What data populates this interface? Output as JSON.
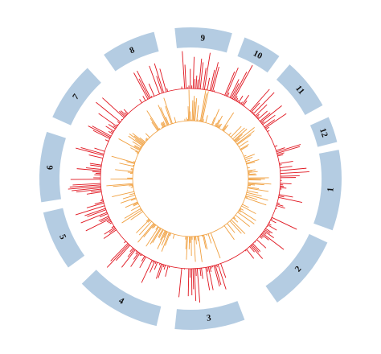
{
  "diagram": {
    "segments": [
      {
        "label": "1",
        "start_deg": 79,
        "end_deg": 110
      },
      {
        "label": "2",
        "start_deg": 115,
        "end_deg": 145
      },
      {
        "label": "3",
        "start_deg": 159,
        "end_deg": 186
      },
      {
        "label": "4",
        "start_deg": 193,
        "end_deg": 226
      },
      {
        "label": "5",
        "start_deg": 234,
        "end_deg": 257
      },
      {
        "label": "6",
        "start_deg": 261,
        "end_deg": 288
      },
      {
        "label": "7",
        "start_deg": 294,
        "end_deg": 317
      },
      {
        "label": "8",
        "start_deg": 325,
        "end_deg": 346
      },
      {
        "label": "9",
        "start_deg": 354,
        "end_deg": 16
      },
      {
        "label": "10",
        "start_deg": 21,
        "end_deg": 36
      },
      {
        "label": "11",
        "start_deg": 41,
        "end_deg": 61
      },
      {
        "label": "12",
        "start_deg": 66,
        "end_deg": 76
      }
    ],
    "colors": {
      "segment": "#b4cce2",
      "outer_track": "#e0141e",
      "inner_track": "#f0a040",
      "label": "#111111"
    }
  }
}
